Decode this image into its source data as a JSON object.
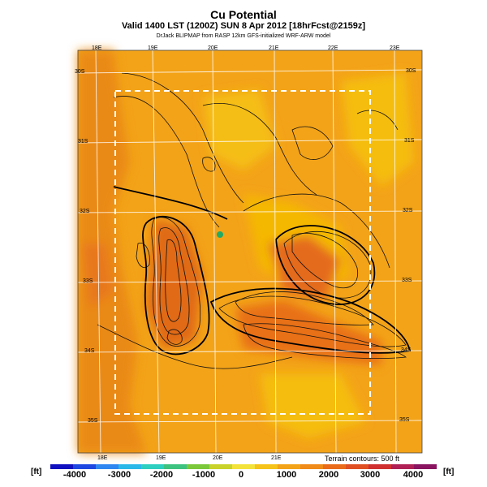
{
  "header": {
    "title": "Cu Potential",
    "subtitle": "Valid 1400 LST (1200Z) SUN 8 Apr 2012 [18hrFcst@2159z]",
    "caption": "DrJack BLIPMAP from RASP 12km GFS-initialized WRF-ARW model"
  },
  "map": {
    "lon_labels_top": [
      "18E",
      "19E",
      "20E",
      "21E",
      "22E",
      "23E"
    ],
    "lon_labels_bottom": [
      "18E",
      "19E",
      "20E",
      "21E"
    ],
    "lat_labels_left": [
      "30S",
      "31S",
      "32S",
      "33S",
      "34S",
      "35S"
    ],
    "lat_labels_right": [
      "30S",
      "31S",
      "32S",
      "33S",
      "34S",
      "35S"
    ],
    "terrain_note": "Terrain contours: 500 ft",
    "marker_color": "#22aa66",
    "field_colors": {
      "low": "#f5b800",
      "mid": "#f09500",
      "high": "#e8701a",
      "peak": "#d94b12"
    }
  },
  "legend": {
    "unit_left": "[ft]",
    "unit_right": "[ft]",
    "ticks": [
      "-4000",
      "-3000",
      "-2000",
      "-1000",
      "0",
      "1000",
      "2000",
      "3000",
      "4000"
    ],
    "colors": [
      "#1010c0",
      "#1d47e0",
      "#2f86f0",
      "#29b8e8",
      "#2dcfc0",
      "#3ec280",
      "#7bc83a",
      "#c8d22a",
      "#f3e23a",
      "#f5c31a",
      "#f3a318",
      "#f08a18",
      "#ea6b1a",
      "#e04f22",
      "#d03030",
      "#b02055",
      "#8a1460"
    ]
  }
}
